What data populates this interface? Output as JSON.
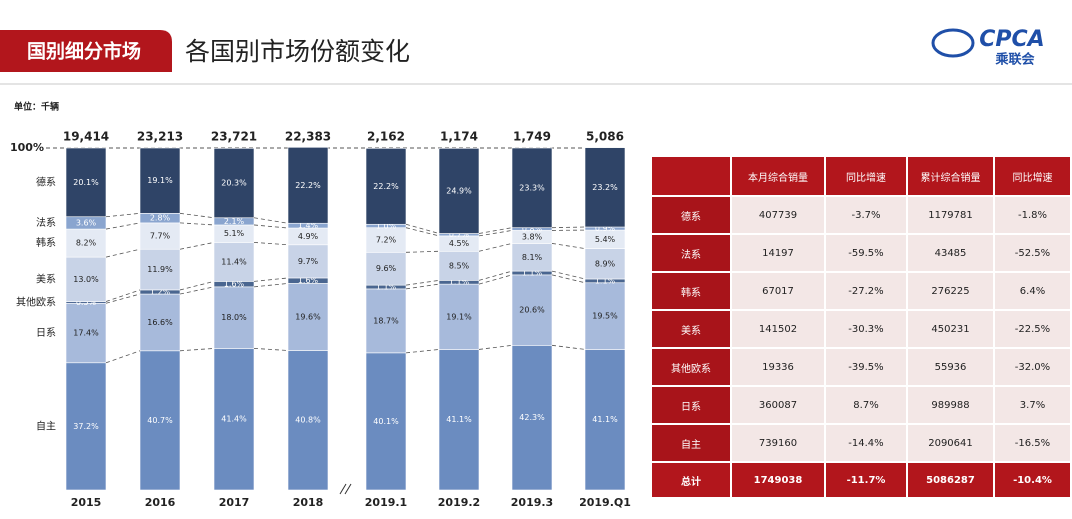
{
  "header": {
    "tag": "国别细分市场",
    "title": "各国别市场份额变化",
    "logo": "CPCA",
    "logo_sub": "乘联会"
  },
  "chart_data": {
    "type": "stacked_bar",
    "unit": "单位：千辆",
    "categories": [
      "2015",
      "2016",
      "2017",
      "2018",
      "2019.1",
      "2019.2",
      "2019.3",
      "2019.Q1"
    ],
    "totals": {
      "values": [
        19414,
        23213,
        23721,
        22383,
        2162,
        1174,
        1749,
        5086
      ],
      "value_labels": [
        "19,414",
        "23,213",
        "23,721",
        "22,383",
        "2,162",
        "1,174",
        "1,749",
        "5,086"
      ]
    },
    "ylim": [
      0,
      100
    ],
    "yticks": [
      {
        "value": 100,
        "label": "100%"
      }
    ],
    "series": [
      {
        "name": "自主",
        "color": "#6b8cc0",
        "values": [
          37.2,
          40.7,
          41.4,
          40.8,
          40.1,
          41.1,
          42.3,
          41.1
        ],
        "value_labels": [
          "37.2%",
          "40.7%",
          "41.4%",
          "40.8%",
          "40.1%",
          "41.1%",
          "42.3%",
          "41.1%"
        ]
      },
      {
        "name": "日系",
        "color": "#a7badb",
        "values": [
          17.4,
          16.6,
          18.0,
          19.6,
          18.7,
          19.1,
          20.6,
          19.5
        ],
        "value_labels": [
          "17.4%",
          "16.6%",
          "18.0%",
          "19.6%",
          "18.7%",
          "19.1%",
          "20.6%",
          "19.5%"
        ]
      },
      {
        "name": "其他欧系",
        "color": "#4a6690",
        "values": [
          0.5,
          1.2,
          1.6,
          1.6,
          1.1,
          1.1,
          1.1,
          1.1
        ],
        "value_labels": [
          "0.5%",
          "1.2%",
          "1.6%",
          "1.6%",
          "1.1%",
          "1.1%",
          "1.1%",
          "1.1%"
        ]
      },
      {
        "name": "美系",
        "color": "#c8d3e7",
        "values": [
          13.0,
          11.9,
          11.4,
          9.7,
          9.6,
          8.5,
          8.1,
          8.9
        ],
        "value_labels": [
          "13.0%",
          "11.9%",
          "11.4%",
          "9.7%",
          "9.6%",
          "8.5%",
          "8.1%",
          "8.9%"
        ]
      },
      {
        "name": "韩系",
        "color": "#e4eaf4",
        "values": [
          8.2,
          7.7,
          5.1,
          4.9,
          7.2,
          4.5,
          3.8,
          5.4
        ],
        "value_labels": [
          "8.2%",
          "7.7%",
          "5.1%",
          "4.9%",
          "7.2%",
          "4.5%",
          "3.8%",
          "5.4%"
        ]
      },
      {
        "name": "法系",
        "color": "#8aa5cf",
        "values": [
          3.6,
          2.8,
          2.1,
          1.4,
          1.0,
          0.7,
          0.8,
          0.9
        ],
        "value_labels": [
          "3.6%",
          "2.8%",
          "2.1%",
          "1.4%",
          "1.0%",
          "0.7%",
          "0.8%",
          "0.9%"
        ]
      },
      {
        "name": "德系",
        "color": "#2f4467",
        "values": [
          20.1,
          19.1,
          20.3,
          22.2,
          22.2,
          24.9,
          23.3,
          23.2
        ],
        "value_labels": [
          "20.1%",
          "19.1%",
          "20.3%",
          "22.2%",
          "22.2%",
          "24.9%",
          "23.3%",
          "23.2%"
        ]
      }
    ]
  },
  "table": {
    "columns": [
      "本月综合销量",
      "同比增速",
      "累计综合销量",
      "同比增速"
    ],
    "rows": [
      [
        "德系",
        "407739",
        "-3.7%",
        "1179781",
        "-1.8%"
      ],
      [
        "法系",
        "14197",
        "-59.5%",
        "43485",
        "-52.5%"
      ],
      [
        "韩系",
        "67017",
        "-27.2%",
        "276225",
        "6.4%"
      ],
      [
        "美系",
        "141502",
        "-30.3%",
        "450231",
        "-22.5%"
      ],
      [
        "其他欧系",
        "19336",
        "-39.5%",
        "55936",
        "-32.0%"
      ],
      [
        "日系",
        "360087",
        "8.7%",
        "989988",
        "3.7%"
      ],
      [
        "自主",
        "739160",
        "-14.4%",
        "2090641",
        "-16.5%"
      ]
    ],
    "total": [
      "总计",
      "1749038",
      "-11.7%",
      "5086287",
      "-10.4%"
    ]
  }
}
